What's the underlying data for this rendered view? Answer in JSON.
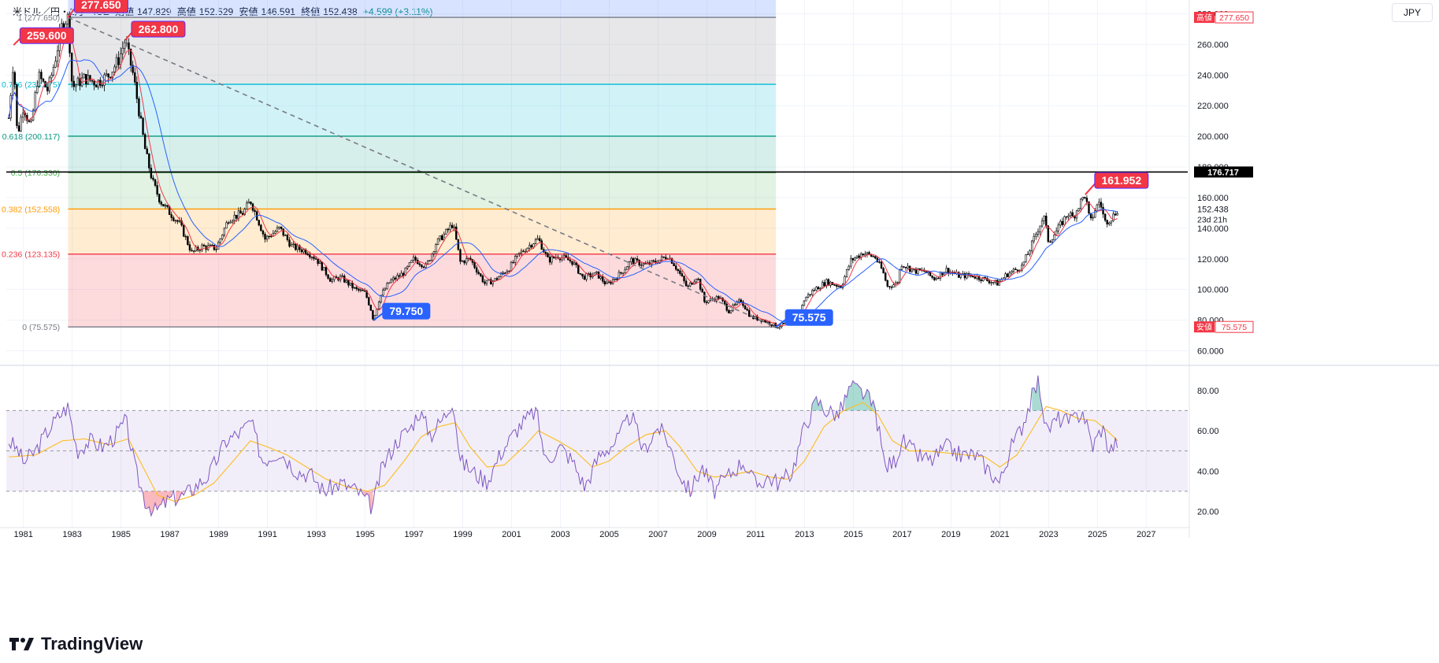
{
  "header": {
    "symbol": "米ドル／円・1月・ICE",
    "open_label": "始値",
    "open": "147.829",
    "high_label": "高値",
    "high": "152.529",
    "low_label": "安値",
    "low": "146.591",
    "close_label": "終値",
    "close": "152.438",
    "change": "+4.599 (+3.11%)"
  },
  "currency_button": "JPY",
  "brand": "TradingView",
  "colors": {
    "up": "#ffffff",
    "down": "#000000",
    "ma_fast": "#f23645",
    "ma_slow": "#2962ff",
    "rsi": "#7e57c2",
    "rsi_ma": "#fbc02d",
    "annotation_red": "#f23645",
    "annotation_blue": "#2962ff"
  },
  "chart_data": [
    {
      "type": "candlestick",
      "name": "USD/JPY monthly",
      "x_axis": {
        "ticks": [
          "1981",
          "1983",
          "1985",
          "1987",
          "1989",
          "1991",
          "1993",
          "1995",
          "1997",
          "1999",
          "2001",
          "2003",
          "2005",
          "2007",
          "2009",
          "2011",
          "2013",
          "2015",
          "2017",
          "2019",
          "2021",
          "2023",
          "2025",
          "2027"
        ],
        "range": [
          1980.3,
          2028.7
        ]
      },
      "y_axis": {
        "ticks": [
          "60.000",
          "80.000",
          "100.000",
          "120.000",
          "140.000",
          "160.000",
          "180.000",
          "200.000",
          "220.000",
          "240.000",
          "260.000",
          "280.000"
        ],
        "range": [
          51,
          289
        ]
      },
      "price_path": [
        [
          1980.4,
          212
        ],
        [
          1980.6,
          252
        ],
        [
          1980.75,
          200
        ],
        [
          1981.0,
          220
        ],
        [
          1981.3,
          205
        ],
        [
          1981.6,
          240
        ],
        [
          1982.0,
          230
        ],
        [
          1982.3,
          250
        ],
        [
          1982.6,
          274
        ],
        [
          1982.83,
          277.65
        ],
        [
          1983.0,
          232
        ],
        [
          1983.5,
          238
        ],
        [
          1984.0,
          235
        ],
        [
          1984.5,
          240
        ],
        [
          1984.9,
          250
        ],
        [
          1985.17,
          262.8
        ],
        [
          1985.5,
          240
        ],
        [
          1985.75,
          215
        ],
        [
          1986.0,
          190
        ],
        [
          1986.3,
          170
        ],
        [
          1986.6,
          158
        ],
        [
          1987.0,
          150
        ],
        [
          1987.4,
          143
        ],
        [
          1987.9,
          124
        ],
        [
          1988.3,
          128
        ],
        [
          1988.9,
          127
        ],
        [
          1989.4,
          146
        ],
        [
          1990.0,
          150
        ],
        [
          1990.3,
          158
        ],
        [
          1990.6,
          146
        ],
        [
          1990.9,
          133
        ],
        [
          1991.5,
          140
        ],
        [
          1992.0,
          128
        ],
        [
          1992.6,
          125
        ],
        [
          1993.0,
          120
        ],
        [
          1993.6,
          106
        ],
        [
          1994.0,
          108
        ],
        [
          1994.6,
          100
        ],
        [
          1995.0,
          98
        ],
        [
          1995.3,
          84
        ],
        [
          1995.33,
          79.75
        ],
        [
          1995.6,
          95
        ],
        [
          1996.0,
          105
        ],
        [
          1996.6,
          111
        ],
        [
          1997.0,
          120
        ],
        [
          1997.5,
          115
        ],
        [
          1997.9,
          130
        ],
        [
          1998.3,
          137
        ],
        [
          1998.6,
          143
        ],
        [
          1998.9,
          118
        ],
        [
          1999.3,
          120
        ],
        [
          1999.9,
          104
        ],
        [
          2000.3,
          106
        ],
        [
          2000.9,
          114
        ],
        [
          2001.3,
          123
        ],
        [
          2001.9,
          131
        ],
        [
          2002.1,
          133
        ],
        [
          2002.5,
          119
        ],
        [
          2002.9,
          122
        ],
        [
          2003.5,
          118
        ],
        [
          2003.9,
          108
        ],
        [
          2004.5,
          110
        ],
        [
          2004.9,
          103
        ],
        [
          2005.5,
          111
        ],
        [
          2005.9,
          119
        ],
        [
          2006.5,
          116
        ],
        [
          2006.9,
          118
        ],
        [
          2007.4,
          122
        ],
        [
          2007.6,
          118
        ],
        [
          2007.9,
          110
        ],
        [
          2008.2,
          101
        ],
        [
          2008.6,
          109
        ],
        [
          2008.9,
          92
        ],
        [
          2009.5,
          95
        ],
        [
          2009.9,
          86
        ],
        [
          2010.4,
          93
        ],
        [
          2010.8,
          82
        ],
        [
          2011.3,
          80
        ],
        [
          2011.8,
          76.5
        ],
        [
          2011.83,
          75.575
        ],
        [
          2012.3,
          78
        ],
        [
          2012.8,
          84
        ],
        [
          2013.0,
          94
        ],
        [
          2013.4,
          100
        ],
        [
          2013.9,
          105
        ],
        [
          2014.5,
          102
        ],
        [
          2014.9,
          119
        ],
        [
          2015.4,
          124
        ],
        [
          2015.9,
          121
        ],
        [
          2016.2,
          112
        ],
        [
          2016.4,
          102
        ],
        [
          2016.8,
          104
        ],
        [
          2016.95,
          117
        ],
        [
          2017.5,
          112
        ],
        [
          2017.9,
          112
        ],
        [
          2018.3,
          107
        ],
        [
          2018.8,
          113
        ],
        [
          2019.3,
          109
        ],
        [
          2019.9,
          109
        ],
        [
          2020.3,
          107
        ],
        [
          2020.9,
          104
        ],
        [
          2021.3,
          110
        ],
        [
          2021.9,
          115
        ],
        [
          2022.2,
          125
        ],
        [
          2022.5,
          137
        ],
        [
          2022.8,
          148
        ],
        [
          2023.0,
          131
        ],
        [
          2023.4,
          140
        ],
        [
          2023.8,
          150
        ],
        [
          2024.0,
          147
        ],
        [
          2024.3,
          157
        ],
        [
          2024.5,
          161.952
        ],
        [
          2024.7,
          143
        ],
        [
          2024.9,
          152
        ],
        [
          2025.1,
          158
        ],
        [
          2025.3,
          144
        ],
        [
          2025.6,
          147
        ],
        [
          2025.83,
          152.438
        ]
      ],
      "fibonacci": {
        "levels": [
          {
            "ratio": "0",
            "value": 75.575,
            "label": "0 (75.575)",
            "color": "#787b86",
            "fill": "rgba(242,54,69,0.18)"
          },
          {
            "ratio": "0.236",
            "value": 123.135,
            "label": "0.236 (123.135)",
            "color": "#f23645",
            "fill": "rgba(255,152,0,0.18)"
          },
          {
            "ratio": "0.382",
            "value": 152.558,
            "label": "0.382 (152.558)",
            "color": "#ff9800",
            "fill": "rgba(76,175,80,0.16)"
          },
          {
            "ratio": "0.5",
            "value": 176.33,
            "label": "0.5 (176.330)",
            "color": "#4caf50",
            "fill": "rgba(8,153,129,0.16)"
          },
          {
            "ratio": "0.618",
            "value": 200.117,
            "label": "0.618 (200.117)",
            "color": "#089981",
            "fill": "rgba(0,188,212,0.18)"
          },
          {
            "ratio": "0.786",
            "value": 233.975,
            "label": "0.786 (233.975)",
            "color": "#00bcd4",
            "fill": "rgba(120,123,134,0.18)"
          },
          {
            "ratio": "1",
            "value": 277.65,
            "label": "1 (277.650)",
            "color": "#787b86",
            "fill": "rgba(41,98,255,0.18)"
          }
        ],
        "x_range": [
          1982.83,
          2011.83
        ],
        "top_band_to": 289,
        "label_x": 1982.5
      },
      "trendline": {
        "from": [
          1982.83,
          277.65
        ],
        "to": [
          2011.83,
          75.575
        ],
        "color": "#787b86",
        "dashed": true
      },
      "horizontal_line": {
        "value": 176.717,
        "label": "176.717",
        "color": "#000000"
      },
      "annotations": [
        {
          "text": "277.650",
          "x": 1982.83,
          "y": 277.65,
          "color": "#f23645",
          "dx": 8,
          "dy": -26
        },
        {
          "text": "259.600",
          "x": 1980.6,
          "y": 259.6,
          "color": "#f23645",
          "dx": 8,
          "dy": -22
        },
        {
          "text": "262.800",
          "x": 1985.17,
          "y": 262.8,
          "color": "#f23645",
          "dx": 8,
          "dy": -24
        },
        {
          "text": "79.750",
          "x": 1995.33,
          "y": 79.75,
          "color": "#2962ff",
          "dx": 12,
          "dy": -22
        },
        {
          "text": "75.575",
          "x": 2011.83,
          "y": 75.575,
          "color": "#2962ff",
          "dx": 12,
          "dy": -22
        },
        {
          "text": "161.952",
          "x": 2024.5,
          "y": 161.952,
          "color": "#f23645",
          "dx": 12,
          "dy": -28
        }
      ],
      "price_labels": [
        {
          "tag": "高値",
          "value": "277.650",
          "y": 277.65,
          "color": "#f23645"
        },
        {
          "tag": "安値",
          "value": "75.575",
          "y": 75.575,
          "color": "#f23645"
        }
      ],
      "last_price": {
        "value": "152.438",
        "countdown": "23d 21h",
        "y": 152.438
      }
    },
    {
      "type": "line",
      "name": "RSI",
      "y_axis": {
        "ticks": [
          "20.00",
          "40.00",
          "60.00",
          "80.00"
        ],
        "range": [
          12,
          92
        ]
      },
      "band": {
        "upper": 70,
        "middle": 50,
        "lower": 30
      },
      "path": [
        [
          1980.4,
          55
        ],
        [
          1980.8,
          50
        ],
        [
          1981.0,
          44
        ],
        [
          1981.5,
          50
        ],
        [
          1982.0,
          60
        ],
        [
          1982.5,
          68
        ],
        [
          1982.83,
          72
        ],
        [
          1983.2,
          50
        ],
        [
          1983.7,
          55
        ],
        [
          1984.3,
          52
        ],
        [
          1984.8,
          58
        ],
        [
          1985.2,
          65
        ],
        [
          1985.6,
          40
        ],
        [
          1986.0,
          25
        ],
        [
          1986.4,
          20
        ],
        [
          1987.0,
          26
        ],
        [
          1987.6,
          28
        ],
        [
          1988.0,
          32
        ],
        [
          1988.6,
          38
        ],
        [
          1989.3,
          55
        ],
        [
          1990.0,
          60
        ],
        [
          1990.3,
          65
        ],
        [
          1990.8,
          45
        ],
        [
          1991.5,
          50
        ],
        [
          1992.2,
          40
        ],
        [
          1992.8,
          38
        ],
        [
          1993.3,
          30
        ],
        [
          1994.0,
          34
        ],
        [
          1994.7,
          30
        ],
        [
          1995.3,
          22
        ],
        [
          1995.7,
          42
        ],
        [
          1996.3,
          55
        ],
        [
          1996.9,
          62
        ],
        [
          1997.2,
          70
        ],
        [
          1997.7,
          58
        ],
        [
          1998.3,
          68
        ],
        [
          1998.6,
          76
        ],
        [
          1998.9,
          45
        ],
        [
          1999.6,
          38
        ],
        [
          2000.0,
          35
        ],
        [
          2000.6,
          50
        ],
        [
          2001.3,
          62
        ],
        [
          2002.0,
          70
        ],
        [
          2002.4,
          45
        ],
        [
          2003.0,
          52
        ],
        [
          2003.5,
          45
        ],
        [
          2004.0,
          32
        ],
        [
          2004.6,
          48
        ],
        [
          2005.3,
          55
        ],
        [
          2005.9,
          68
        ],
        [
          2006.4,
          50
        ],
        [
          2007.0,
          62
        ],
        [
          2007.4,
          55
        ],
        [
          2007.9,
          38
        ],
        [
          2008.3,
          30
        ],
        [
          2008.8,
          42
        ],
        [
          2009.3,
          30
        ],
        [
          2009.9,
          38
        ],
        [
          2010.5,
          45
        ],
        [
          2011.0,
          33
        ],
        [
          2011.5,
          37
        ],
        [
          2012.0,
          34
        ],
        [
          2012.5,
          40
        ],
        [
          2013.0,
          62
        ],
        [
          2013.5,
          75
        ],
        [
          2013.9,
          70
        ],
        [
          2014.4,
          68
        ],
        [
          2014.9,
          82
        ],
        [
          2015.5,
          78
        ],
        [
          2015.9,
          70
        ],
        [
          2016.3,
          42
        ],
        [
          2016.7,
          45
        ],
        [
          2017.0,
          55
        ],
        [
          2017.6,
          48
        ],
        [
          2018.2,
          45
        ],
        [
          2018.8,
          52
        ],
        [
          2019.4,
          48
        ],
        [
          2020.0,
          48
        ],
        [
          2020.6,
          40
        ],
        [
          2021.0,
          34
        ],
        [
          2021.4,
          50
        ],
        [
          2021.9,
          62
        ],
        [
          2022.3,
          76
        ],
        [
          2022.6,
          85
        ],
        [
          2022.9,
          60
        ],
        [
          2023.4,
          66
        ],
        [
          2023.9,
          64
        ],
        [
          2024.4,
          70
        ],
        [
          2024.8,
          52
        ],
        [
          2025.2,
          62
        ],
        [
          2025.5,
          50
        ],
        [
          2025.83,
          55
        ]
      ],
      "ma_path": [
        [
          1980.4,
          47
        ],
        [
          1981.5,
          48
        ],
        [
          1982.6,
          55
        ],
        [
          1983.5,
          56
        ],
        [
          1984.5,
          53
        ],
        [
          1985.3,
          56
        ],
        [
          1985.9,
          42
        ],
        [
          1986.5,
          28
        ],
        [
          1987.2,
          25
        ],
        [
          1988.0,
          28
        ],
        [
          1988.8,
          34
        ],
        [
          1989.6,
          45
        ],
        [
          1990.3,
          55
        ],
        [
          1991.0,
          52
        ],
        [
          1991.8,
          48
        ],
        [
          1992.6,
          42
        ],
        [
          1993.4,
          36
        ],
        [
          1994.3,
          32
        ],
        [
          1995.1,
          30
        ],
        [
          1995.8,
          33
        ],
        [
          1996.6,
          45
        ],
        [
          1997.3,
          57
        ],
        [
          1998.0,
          62
        ],
        [
          1998.7,
          64
        ],
        [
          1999.3,
          52
        ],
        [
          2000.0,
          42
        ],
        [
          2000.7,
          43
        ],
        [
          2001.5,
          52
        ],
        [
          2002.1,
          60
        ],
        [
          2002.9,
          55
        ],
        [
          2003.6,
          50
        ],
        [
          2004.3,
          42
        ],
        [
          2005.0,
          45
        ],
        [
          2005.7,
          52
        ],
        [
          2006.5,
          58
        ],
        [
          2007.3,
          60
        ],
        [
          2007.9,
          52
        ],
        [
          2008.6,
          40
        ],
        [
          2009.3,
          37
        ],
        [
          2010.0,
          38
        ],
        [
          2010.8,
          40
        ],
        [
          2011.6,
          37
        ],
        [
          2012.3,
          36
        ],
        [
          2013.0,
          45
        ],
        [
          2013.8,
          62
        ],
        [
          2014.6,
          70
        ],
        [
          2015.4,
          74
        ],
        [
          2016.0,
          68
        ],
        [
          2016.6,
          55
        ],
        [
          2017.3,
          50
        ],
        [
          2018.0,
          50
        ],
        [
          2018.8,
          49
        ],
        [
          2019.6,
          48
        ],
        [
          2020.4,
          47
        ],
        [
          2021.0,
          42
        ],
        [
          2021.7,
          48
        ],
        [
          2022.3,
          60
        ],
        [
          2022.9,
          72
        ],
        [
          2023.5,
          70
        ],
        [
          2024.2,
          66
        ],
        [
          2024.9,
          65
        ],
        [
          2025.4,
          60
        ],
        [
          2025.83,
          55
        ]
      ]
    }
  ]
}
